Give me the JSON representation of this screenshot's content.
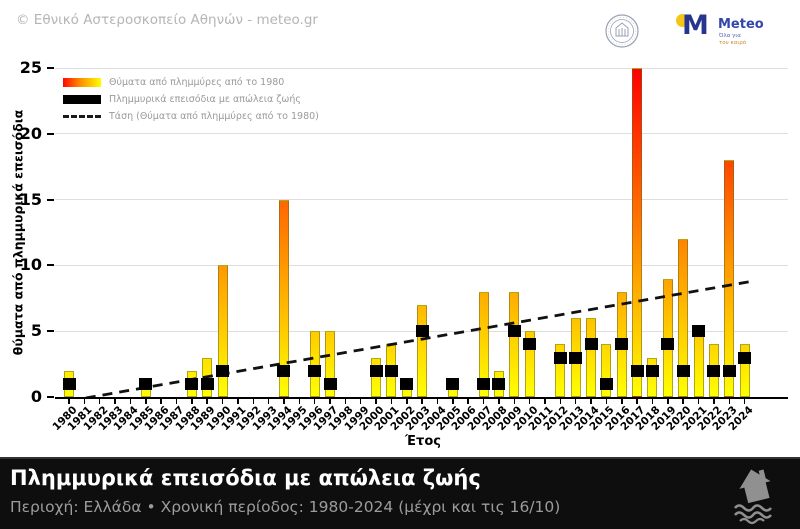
{
  "header": {
    "copyright": "© Εθνικό Αστεροσκοπείο Αθηνών - meteo.gr",
    "meteo_logo": {
      "name": "Meteo",
      "tagline_line1": "Όλα για",
      "tagline_line2": "τον καιρό"
    }
  },
  "legend": {
    "items": [
      {
        "swatch": "gradient-bar",
        "label": "Θύματα από πλημμύρες από το 1980"
      },
      {
        "swatch": "black-bar",
        "label": "Πλημμυρικά επεισόδια με απώλεια ζωής"
      },
      {
        "swatch": "dashed-line",
        "label": "Τάση (Θύματα από πλημμύρες από το 1980)"
      }
    ]
  },
  "chart_data": {
    "type": "bar",
    "title": "",
    "xlabel": "Έτος",
    "ylabel": "θύματα από πλημμυρικά επεισόδια",
    "ylim": [
      0,
      25
    ],
    "yticks": [
      0,
      5,
      10,
      15,
      20,
      25
    ],
    "grid": "horizontal",
    "legend_position": "upper-left",
    "years": [
      1980,
      1981,
      1982,
      1983,
      1984,
      1985,
      1986,
      1987,
      1988,
      1989,
      1990,
      1991,
      1992,
      1993,
      1994,
      1995,
      1996,
      1997,
      1998,
      1999,
      2000,
      2001,
      2002,
      2003,
      2004,
      2005,
      2006,
      2007,
      2008,
      2009,
      2010,
      2011,
      2012,
      2013,
      2014,
      2015,
      2016,
      2017,
      2018,
      2019,
      2020,
      2021,
      2022,
      2023,
      2024
    ],
    "series": [
      {
        "name": "Θύματα από πλημμύρες από το 1980",
        "type": "gradient-bar",
        "values": [
          2,
          0,
          0,
          0,
          0,
          1,
          0,
          0,
          2,
          3,
          10,
          0,
          0,
          0,
          15,
          0,
          5,
          5,
          0,
          0,
          3,
          4,
          1,
          7,
          0,
          1,
          0,
          8,
          2,
          8,
          5,
          0,
          4,
          6,
          6,
          4,
          8,
          25,
          3,
          9,
          12,
          5,
          4,
          18,
          4
        ]
      },
      {
        "name": "Πλημμυρικά επεισόδια με απώλεια ζωής",
        "type": "square-marker",
        "values": [
          1,
          0,
          0,
          0,
          0,
          1,
          0,
          0,
          1,
          1,
          2,
          0,
          0,
          0,
          2,
          0,
          2,
          1,
          0,
          0,
          2,
          2,
          1,
          5,
          0,
          1,
          0,
          1,
          1,
          5,
          4,
          0,
          3,
          3,
          4,
          1,
          4,
          2,
          2,
          4,
          2,
          5,
          2,
          2,
          3
        ]
      }
    ],
    "trend": {
      "name": "Τάση (Θύματα από πλημμύρες από το 1980)",
      "style": "dashed",
      "x": [
        1980,
        2024.5
      ],
      "y": [
        -0.3,
        8.8
      ]
    },
    "colors": {
      "bar_gradient_low": "#ffff00",
      "bar_gradient_high": "#ff0000",
      "episode_marker": "#000000",
      "trend": "#111111",
      "grid": "#dedede",
      "axis": "#000000"
    }
  },
  "footer": {
    "title": "Πλημμυρικά επεισόδια με απώλεια ζωής",
    "subtitle": "Περιοχή: Ελλάδα • Χρονική περίοδος: 1980-2024 (μέχρι και τις 16/10)",
    "icon": "flooded-house-icon"
  }
}
